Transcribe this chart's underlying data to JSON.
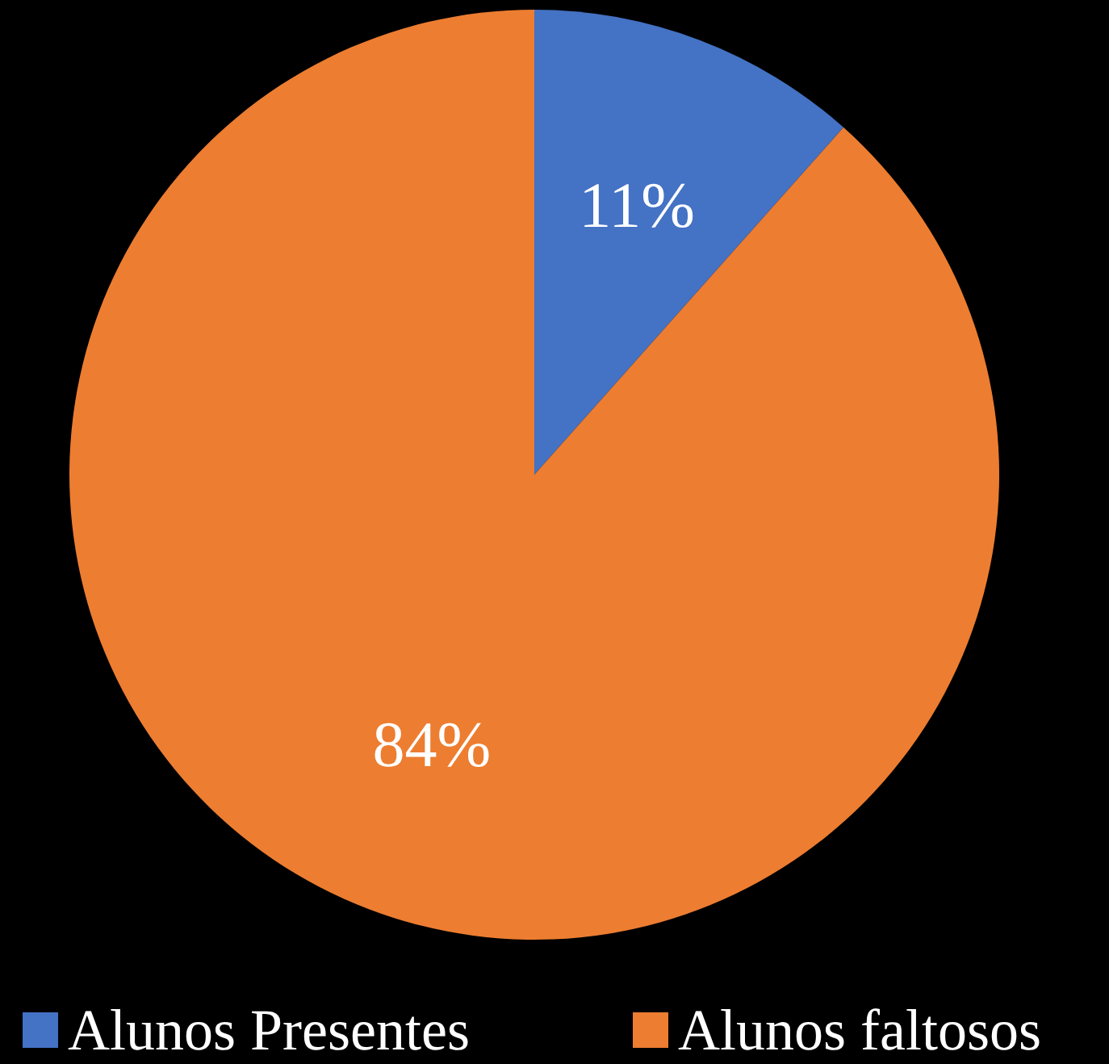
{
  "chart_data": {
    "type": "pie",
    "categories": [
      "Alunos Presentes",
      "Alunos faltosos"
    ],
    "values": [
      11,
      84
    ],
    "colors": [
      "#4472c4",
      "#ed7d31"
    ],
    "value_labels": [
      "11%",
      "84%"
    ],
    "legend": "bottom"
  }
}
